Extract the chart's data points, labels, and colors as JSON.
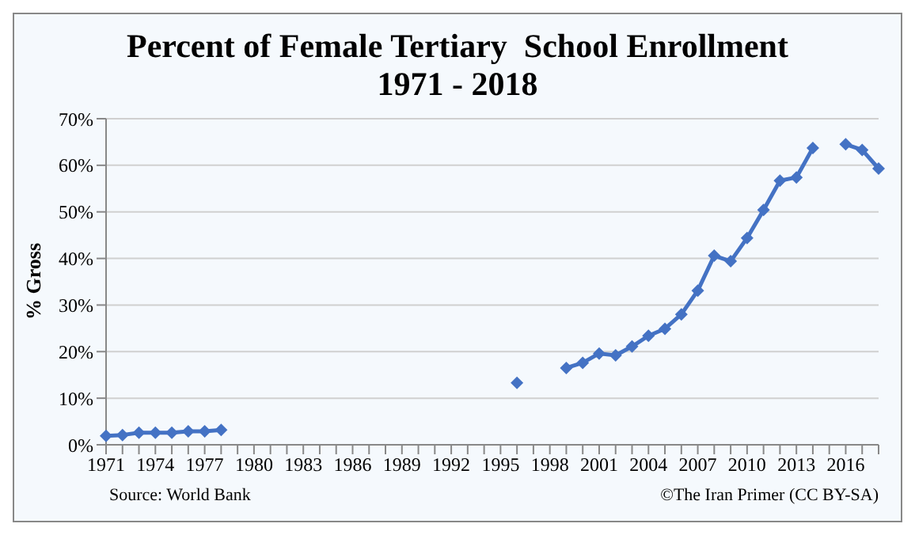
{
  "chart_data": {
    "type": "line",
    "title": "Percent of Female Tertiary  School Enrollment",
    "subtitle": "1971 - 2018",
    "ylabel": "% Gross",
    "categories": [
      "1971",
      null,
      null,
      "1974",
      null,
      null,
      "1977",
      null,
      null,
      "1980",
      null,
      null,
      "1983",
      null,
      null,
      "1986",
      null,
      null,
      "1989",
      null,
      null,
      "1992",
      null,
      null,
      "1995",
      null,
      null,
      "1998",
      null,
      null,
      "2001",
      null,
      null,
      "2004",
      null,
      null,
      "2007",
      null,
      null,
      "2010",
      null,
      null,
      "2013",
      null,
      null,
      "2016",
      null,
      null
    ],
    "series": [
      {
        "color": "#4472c4",
        "values": [
          1.9,
          2.1,
          2.6,
          2.6,
          2.6,
          2.9,
          2.9,
          3.2,
          null,
          null,
          null,
          null,
          null,
          null,
          null,
          null,
          null,
          null,
          null,
          null,
          null,
          null,
          null,
          null,
          null,
          13.3,
          null,
          null,
          16.5,
          17.6,
          19.6,
          19.2,
          21.1,
          23.4,
          24.9,
          28.0,
          33.1,
          40.6,
          39.4,
          44.4,
          50.4,
          56.7,
          57.4,
          63.7,
          null,
          64.5,
          63.3,
          59.3
        ]
      }
    ],
    "ylim": [
      0,
      70
    ],
    "yticks": [
      {
        "value": 0,
        "label": "0%"
      },
      {
        "value": 10,
        "label": "10%"
      },
      {
        "value": 20,
        "label": "20%"
      },
      {
        "value": 30,
        "label": "30%"
      },
      {
        "value": 40,
        "label": "40%"
      },
      {
        "value": 50,
        "label": "50%"
      },
      {
        "value": 60,
        "label": "60%"
      },
      {
        "value": 70,
        "label": "70%"
      }
    ],
    "grid": "y",
    "legend": false,
    "marker": "diamond",
    "line_style": "solid",
    "annotations": [
      "Source:  World Bank",
      "©The Iran Primer (CC BY-SA)"
    ]
  }
}
